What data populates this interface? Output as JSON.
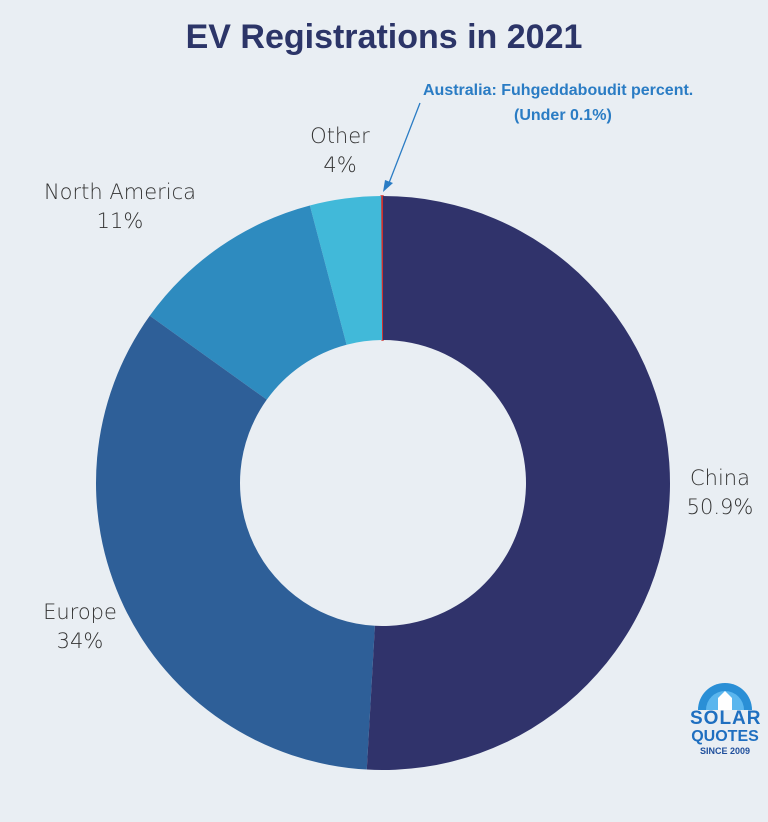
{
  "chart_data": {
    "type": "pie",
    "donut": true,
    "title": "EV Registrations in 2021",
    "slices": [
      {
        "label": "China",
        "value": 50.9,
        "value_label": "50.9%",
        "color": "#30336b"
      },
      {
        "label": "Europe",
        "value": 34,
        "value_label": "34%",
        "color": "#2e5f98"
      },
      {
        "label": "North America",
        "value": 11,
        "value_label": "11%",
        "color": "#2e8bbf"
      },
      {
        "label": "Other",
        "value": 4,
        "value_label": "4%",
        "color": "#41b9d9"
      },
      {
        "label": "Australia",
        "value": 0.1,
        "color": "#d0312d"
      }
    ],
    "annotation": {
      "line1": "Australia:  Fuhgeddaboudit percent.",
      "line2": "(Under 0.1%)",
      "color": "#2a7cc4"
    }
  },
  "logo": {
    "line1": "SOLAR",
    "line2": "QUOTES",
    "line3": "SINCE 2009"
  }
}
